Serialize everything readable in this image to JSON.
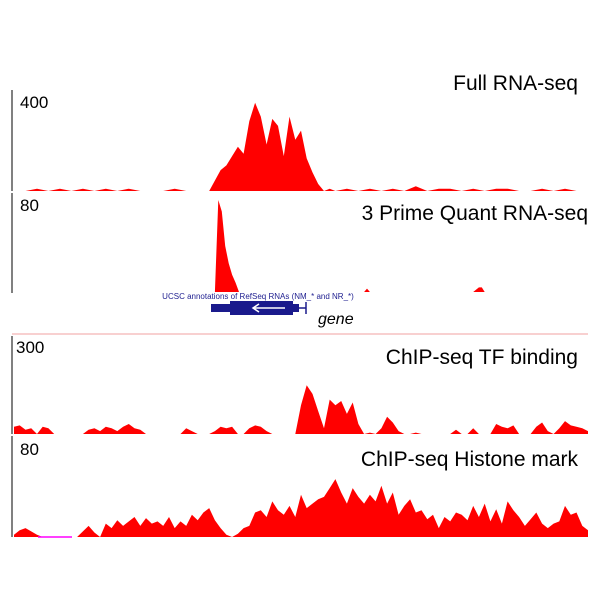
{
  "colors": {
    "signal": "#ff0000",
    "annotation": "#1a1a8c",
    "divider": "#f2a0a0",
    "axis": "#000000",
    "baseline_accent": "#ff00ff"
  },
  "annotation": {
    "label": "UCSC annotations of RefSeq RNAs (NM_* and NR_*)",
    "gene_label": "gene",
    "strand": "minus"
  },
  "chart_data": [
    {
      "type": "area",
      "title": "Full RNA-seq",
      "max_label": "400",
      "ylim": [
        0,
        400
      ],
      "xlim": [
        0,
        100
      ],
      "x": [
        0,
        2,
        4,
        6,
        8,
        10,
        12,
        14,
        16,
        18,
        20,
        22,
        24,
        26,
        28,
        30,
        32,
        34,
        36,
        37,
        38,
        39,
        40,
        41,
        42,
        43,
        44,
        45,
        46,
        47,
        48,
        49,
        50,
        51,
        52,
        53,
        54,
        55,
        56,
        58,
        60,
        62,
        64,
        66,
        68,
        70,
        72,
        74,
        76,
        78,
        80,
        82,
        84,
        86,
        88,
        90,
        92,
        94,
        96,
        98,
        100
      ],
      "values": [
        0,
        0,
        10,
        0,
        10,
        0,
        10,
        0,
        10,
        0,
        10,
        0,
        0,
        0,
        10,
        0,
        0,
        0,
        90,
        110,
        150,
        190,
        160,
        300,
        380,
        320,
        200,
        310,
        280,
        150,
        320,
        220,
        260,
        140,
        80,
        30,
        0,
        10,
        0,
        10,
        0,
        10,
        0,
        10,
        0,
        20,
        0,
        10,
        10,
        0,
        10,
        0,
        10,
        10,
        0,
        0,
        10,
        0,
        10,
        0,
        0
      ]
    },
    {
      "type": "area",
      "title": "3 Prime Quant RNA-seq",
      "max_label": "80",
      "ylim": [
        0,
        80
      ],
      "xlim": [
        0,
        100
      ],
      "x": [
        0,
        20,
        35,
        35.6,
        36.2,
        36.8,
        37.4,
        38,
        38.6,
        39.2,
        40,
        50,
        60,
        61,
        61.5,
        62,
        70,
        80,
        81,
        81.5,
        82,
        90,
        100
      ],
      "values": [
        0,
        0,
        0,
        80,
        70,
        40,
        25,
        15,
        8,
        0,
        0,
        0,
        0,
        0,
        3,
        0,
        0,
        0,
        4,
        4,
        0,
        0,
        0
      ]
    },
    {
      "type": "area",
      "title": "ChIP-seq TF binding",
      "max_label": "300",
      "ylim": [
        0,
        300
      ],
      "xlim": [
        0,
        100
      ],
      "x": [
        0,
        1,
        2,
        3,
        4,
        5,
        6,
        7,
        8,
        9,
        10,
        11,
        12,
        13,
        14,
        15,
        16,
        17,
        18,
        19,
        20,
        21,
        22,
        23,
        24,
        25,
        26,
        27,
        28,
        29,
        30,
        31,
        32,
        33,
        34,
        35,
        36,
        37,
        38,
        39,
        40,
        41,
        42,
        43,
        44,
        45,
        46,
        47,
        48,
        49,
        50,
        51,
        52,
        53,
        54,
        55,
        56,
        57,
        58,
        59,
        60,
        61,
        62,
        63,
        64,
        65,
        66,
        67,
        68,
        69,
        70,
        71,
        72,
        73,
        74,
        75,
        76,
        77,
        78,
        79,
        80,
        81,
        82,
        83,
        84,
        85,
        86,
        87,
        88,
        89,
        90,
        91,
        92,
        93,
        94,
        95,
        96,
        97,
        98,
        99,
        100
      ],
      "values": [
        25,
        30,
        15,
        20,
        0,
        25,
        20,
        0,
        0,
        0,
        0,
        0,
        0,
        15,
        20,
        10,
        25,
        20,
        10,
        25,
        35,
        20,
        15,
        0,
        0,
        0,
        0,
        0,
        0,
        0,
        20,
        10,
        0,
        0,
        0,
        10,
        25,
        20,
        25,
        0,
        0,
        20,
        30,
        25,
        10,
        0,
        0,
        0,
        0,
        0,
        100,
        170,
        140,
        80,
        20,
        120,
        100,
        115,
        70,
        110,
        35,
        0,
        5,
        0,
        20,
        60,
        40,
        10,
        0,
        0,
        5,
        0,
        0,
        0,
        0,
        0,
        0,
        15,
        0,
        0,
        20,
        0,
        0,
        0,
        35,
        25,
        20,
        30,
        0,
        0,
        0,
        25,
        40,
        10,
        0,
        20,
        45,
        30,
        25,
        20,
        10
      ]
    },
    {
      "type": "area",
      "title": "ChIP-seq Histone mark",
      "max_label": "80",
      "ylim": [
        0,
        80
      ],
      "xlim": [
        0,
        100
      ],
      "x": [
        0,
        1,
        2,
        3,
        4,
        5,
        6,
        7,
        8,
        9,
        10,
        11,
        12,
        13,
        14,
        15,
        16,
        17,
        18,
        19,
        20,
        21,
        22,
        23,
        24,
        25,
        26,
        27,
        28,
        29,
        30,
        31,
        32,
        33,
        34,
        35,
        36,
        37,
        38,
        39,
        40,
        41,
        42,
        43,
        44,
        45,
        46,
        47,
        48,
        49,
        50,
        51,
        52,
        53,
        54,
        55,
        56,
        57,
        58,
        59,
        60,
        61,
        62,
        63,
        64,
        65,
        66,
        67,
        68,
        69,
        70,
        71,
        72,
        73,
        74,
        75,
        76,
        77,
        78,
        79,
        80,
        81,
        82,
        83,
        84,
        85,
        86,
        87,
        88,
        89,
        90,
        91,
        92,
        93,
        94,
        95,
        96,
        97,
        98,
        99,
        100
      ],
      "values": [
        2,
        6,
        8,
        5,
        2,
        0,
        0,
        0,
        0,
        0,
        0,
        0,
        5,
        10,
        4,
        0,
        12,
        8,
        15,
        10,
        14,
        18,
        10,
        17,
        12,
        14,
        10,
        18,
        8,
        14,
        10,
        20,
        15,
        22,
        26,
        15,
        8,
        2,
        0,
        3,
        8,
        10,
        22,
        24,
        18,
        32,
        24,
        20,
        28,
        18,
        38,
        26,
        30,
        34,
        36,
        44,
        52,
        40,
        30,
        44,
        36,
        30,
        38,
        32,
        46,
        30,
        40,
        20,
        28,
        34,
        22,
        24,
        16,
        20,
        8,
        18,
        14,
        22,
        20,
        15,
        28,
        18,
        30,
        14,
        25,
        12,
        32,
        24,
        18,
        10,
        16,
        22,
        12,
        8,
        12,
        14,
        28,
        20,
        22,
        10,
        6
      ]
    }
  ]
}
